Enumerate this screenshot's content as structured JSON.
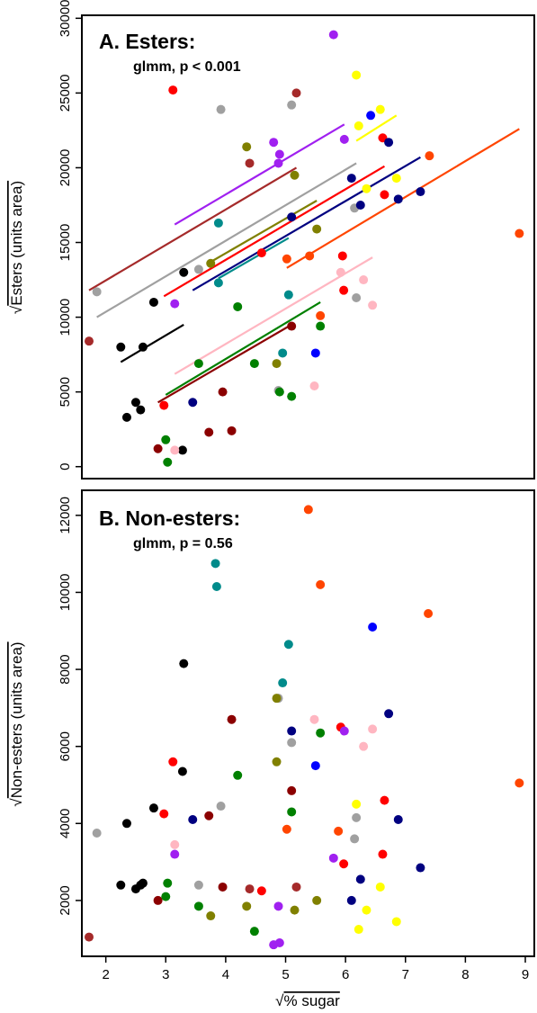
{
  "x_axis": {
    "label_sqrt_symbol": "√",
    "label": "% sugar",
    "ticks": [
      2,
      3,
      4,
      5,
      6,
      7,
      8,
      9
    ],
    "tick_labels": [
      "2",
      "3",
      "4",
      "5",
      "6",
      "7",
      "8",
      "9"
    ],
    "xlim": [
      1.6,
      9.15
    ]
  },
  "chart_data": [
    {
      "type": "scatter",
      "title": "A. Esters:",
      "subtitle": "glmm, p < 0.001",
      "ylabel_sqrt_symbol": "√",
      "ylabel": "Esters (units area)",
      "ylim": [
        -800,
        30200
      ],
      "y_ticks": [
        0,
        5000,
        10000,
        15000,
        20000,
        25000,
        30000
      ],
      "y_tick_labels": [
        "0",
        "5000",
        "10000",
        "15000",
        "20000",
        "25000",
        "30000"
      ],
      "grid": false,
      "legend": "none",
      "points": [
        {
          "x": 2.25,
          "y": 8000,
          "color": "#000000"
        },
        {
          "x": 2.62,
          "y": 8000,
          "color": "#000000"
        },
        {
          "x": 2.8,
          "y": 11000,
          "color": "#000000"
        },
        {
          "x": 3.3,
          "y": 13000,
          "color": "#000000"
        },
        {
          "x": 2.35,
          "y": 3300,
          "color": "#000000"
        },
        {
          "x": 2.5,
          "y": 4300,
          "color": "#000000"
        },
        {
          "x": 2.58,
          "y": 3800,
          "color": "#000000"
        },
        {
          "x": 3.28,
          "y": 1100,
          "color": "#000000"
        },
        {
          "x": 1.85,
          "y": 11700,
          "color": "#a0a0a0"
        },
        {
          "x": 3.55,
          "y": 13200,
          "color": "#a0a0a0"
        },
        {
          "x": 3.92,
          "y": 23900,
          "color": "#a0a0a0"
        },
        {
          "x": 5.1,
          "y": 24200,
          "color": "#a0a0a0"
        },
        {
          "x": 6.15,
          "y": 17300,
          "color": "#a0a0a0"
        },
        {
          "x": 6.18,
          "y": 11300,
          "color": "#a0a0a0"
        },
        {
          "x": 4.88,
          "y": 5100,
          "color": "#a0a0a0"
        },
        {
          "x": 3.12,
          "y": 25200,
          "color": "#ff0000"
        },
        {
          "x": 2.97,
          "y": 4100,
          "color": "#ff0000"
        },
        {
          "x": 4.6,
          "y": 14300,
          "color": "#ff0000"
        },
        {
          "x": 5.95,
          "y": 14100,
          "color": "#ff0000"
        },
        {
          "x": 5.97,
          "y": 11800,
          "color": "#ff0000"
        },
        {
          "x": 6.62,
          "y": 22000,
          "color": "#ff0000"
        },
        {
          "x": 6.65,
          "y": 18200,
          "color": "#ff0000"
        },
        {
          "x": 5.8,
          "y": 28900,
          "color": "#a020f0"
        },
        {
          "x": 4.8,
          "y": 21700,
          "color": "#a020f0"
        },
        {
          "x": 4.88,
          "y": 20300,
          "color": "#a020f0"
        },
        {
          "x": 4.9,
          "y": 20900,
          "color": "#a020f0"
        },
        {
          "x": 5.98,
          "y": 21900,
          "color": "#a020f0"
        },
        {
          "x": 3.15,
          "y": 10900,
          "color": "#a020f0"
        },
        {
          "x": 6.18,
          "y": 26200,
          "color": "#ffff00"
        },
        {
          "x": 6.22,
          "y": 22800,
          "color": "#ffff00"
        },
        {
          "x": 6.58,
          "y": 23900,
          "color": "#ffff00"
        },
        {
          "x": 6.35,
          "y": 18600,
          "color": "#ffff00"
        },
        {
          "x": 6.85,
          "y": 19300,
          "color": "#ffff00"
        },
        {
          "x": 6.42,
          "y": 23500,
          "color": "#0000ff"
        },
        {
          "x": 5.5,
          "y": 7600,
          "color": "#0000ff"
        },
        {
          "x": 6.72,
          "y": 21700,
          "color": "#000080"
        },
        {
          "x": 6.1,
          "y": 19300,
          "color": "#000080"
        },
        {
          "x": 6.25,
          "y": 17500,
          "color": "#000080"
        },
        {
          "x": 6.88,
          "y": 17900,
          "color": "#000080"
        },
        {
          "x": 7.25,
          "y": 18400,
          "color": "#000080"
        },
        {
          "x": 5.1,
          "y": 16700,
          "color": "#000080"
        },
        {
          "x": 3.45,
          "y": 4300,
          "color": "#000080"
        },
        {
          "x": 7.4,
          "y": 20800,
          "color": "#ff4500"
        },
        {
          "x": 8.9,
          "y": 15600,
          "color": "#ff4500"
        },
        {
          "x": 5.4,
          "y": 14100,
          "color": "#ff4500"
        },
        {
          "x": 5.02,
          "y": 13900,
          "color": "#ff4500"
        },
        {
          "x": 5.58,
          "y": 10100,
          "color": "#ff4500"
        },
        {
          "x": 4.35,
          "y": 21400,
          "color": "#808000"
        },
        {
          "x": 3.75,
          "y": 13600,
          "color": "#808000"
        },
        {
          "x": 5.15,
          "y": 19500,
          "color": "#808000"
        },
        {
          "x": 5.52,
          "y": 15900,
          "color": "#808000"
        },
        {
          "x": 4.85,
          "y": 6900,
          "color": "#808000"
        },
        {
          "x": 3.88,
          "y": 16300,
          "color": "#008b8b"
        },
        {
          "x": 3.88,
          "y": 12300,
          "color": "#008b8b"
        },
        {
          "x": 5.05,
          "y": 11500,
          "color": "#008b8b"
        },
        {
          "x": 4.95,
          "y": 7600,
          "color": "#008b8b"
        },
        {
          "x": 4.2,
          "y": 10700,
          "color": "#008000"
        },
        {
          "x": 3.55,
          "y": 6900,
          "color": "#008000"
        },
        {
          "x": 4.48,
          "y": 6900,
          "color": "#008000"
        },
        {
          "x": 4.9,
          "y": 5000,
          "color": "#008000"
        },
        {
          "x": 5.1,
          "y": 4700,
          "color": "#008000"
        },
        {
          "x": 5.58,
          "y": 9400,
          "color": "#008000"
        },
        {
          "x": 3.0,
          "y": 1800,
          "color": "#008000"
        },
        {
          "x": 3.03,
          "y": 300,
          "color": "#008000"
        },
        {
          "x": 1.72,
          "y": 8400,
          "color": "#a52a2a"
        },
        {
          "x": 4.4,
          "y": 20300,
          "color": "#a52a2a"
        },
        {
          "x": 5.18,
          "y": 25000,
          "color": "#a52a2a"
        },
        {
          "x": 2.87,
          "y": 1200,
          "color": "#8b0000"
        },
        {
          "x": 3.95,
          "y": 5000,
          "color": "#8b0000"
        },
        {
          "x": 3.72,
          "y": 2300,
          "color": "#8b0000"
        },
        {
          "x": 4.1,
          "y": 2400,
          "color": "#8b0000"
        },
        {
          "x": 5.1,
          "y": 9400,
          "color": "#8b0000"
        },
        {
          "x": 3.15,
          "y": 1100,
          "color": "#ffb6c1"
        },
        {
          "x": 5.48,
          "y": 5400,
          "color": "#ffb6c1"
        },
        {
          "x": 5.92,
          "y": 13000,
          "color": "#ffb6c1"
        },
        {
          "x": 6.3,
          "y": 12500,
          "color": "#ffb6c1"
        },
        {
          "x": 6.45,
          "y": 10800,
          "color": "#ffb6c1"
        }
      ],
      "fit_lines": [
        {
          "x": [
            2.25,
            3.3
          ],
          "y": [
            7000,
            9500
          ],
          "color": "#000000"
        },
        {
          "x": [
            1.72,
            5.18
          ],
          "y": [
            11800,
            20000
          ],
          "color": "#a52a2a"
        },
        {
          "x": [
            1.85,
            6.18
          ],
          "y": [
            10000,
            20300
          ],
          "color": "#a0a0a0"
        },
        {
          "x": [
            3.15,
            5.98
          ],
          "y": [
            16200,
            22900
          ],
          "color": "#a020f0"
        },
        {
          "x": [
            3.75,
            5.52
          ],
          "y": [
            13700,
            17800
          ],
          "color": "#808000"
        },
        {
          "x": [
            3.88,
            5.05
          ],
          "y": [
            12600,
            15300
          ],
          "color": "#008b8b"
        },
        {
          "x": [
            2.97,
            6.65
          ],
          "y": [
            11400,
            20100
          ],
          "color": "#ff0000"
        },
        {
          "x": [
            3.45,
            7.25
          ],
          "y": [
            11800,
            20700
          ],
          "color": "#000080"
        },
        {
          "x": [
            5.02,
            8.9
          ],
          "y": [
            13300,
            22600
          ],
          "color": "#ff4500"
        },
        {
          "x": [
            6.18,
            6.85
          ],
          "y": [
            21800,
            23500
          ],
          "color": "#ffff00"
        },
        {
          "x": [
            3.15,
            6.45
          ],
          "y": [
            6200,
            14000
          ],
          "color": "#ffb6c1"
        },
        {
          "x": [
            3.0,
            5.58
          ],
          "y": [
            4800,
            11000
          ],
          "color": "#008000"
        },
        {
          "x": [
            2.87,
            5.1
          ],
          "y": [
            4300,
            9500
          ],
          "color": "#8b0000"
        }
      ]
    },
    {
      "type": "scatter",
      "title": "B. Non-esters:",
      "subtitle": "glmm, p = 0.56",
      "ylabel_sqrt_symbol": "√",
      "ylabel": "Non-esters (units area)",
      "ylim": [
        550,
        12650
      ],
      "y_ticks": [
        2000,
        4000,
        6000,
        8000,
        10000,
        12000
      ],
      "y_tick_labels": [
        "2000",
        "4000",
        "6000",
        "8000",
        "10000",
        "12000"
      ],
      "grid": false,
      "legend": "none",
      "points": [
        {
          "x": 5.38,
          "y": 12150,
          "color": "#ff4500"
        },
        {
          "x": 5.58,
          "y": 10200,
          "color": "#ff4500"
        },
        {
          "x": 7.38,
          "y": 9450,
          "color": "#ff4500"
        },
        {
          "x": 8.9,
          "y": 5050,
          "color": "#ff4500"
        },
        {
          "x": 5.02,
          "y": 3850,
          "color": "#ff4500"
        },
        {
          "x": 5.88,
          "y": 3800,
          "color": "#ff4500"
        },
        {
          "x": 3.83,
          "y": 10750,
          "color": "#008b8b"
        },
        {
          "x": 3.85,
          "y": 10150,
          "color": "#008b8b"
        },
        {
          "x": 5.05,
          "y": 8650,
          "color": "#008b8b"
        },
        {
          "x": 4.95,
          "y": 7650,
          "color": "#008b8b"
        },
        {
          "x": 6.45,
          "y": 9100,
          "color": "#0000ff"
        },
        {
          "x": 5.5,
          "y": 5500,
          "color": "#0000ff"
        },
        {
          "x": 3.3,
          "y": 8150,
          "color": "#000000"
        },
        {
          "x": 3.28,
          "y": 5350,
          "color": "#000000"
        },
        {
          "x": 2.8,
          "y": 4400,
          "color": "#000000"
        },
        {
          "x": 2.35,
          "y": 4000,
          "color": "#000000"
        },
        {
          "x": 2.25,
          "y": 2400,
          "color": "#000000"
        },
        {
          "x": 2.5,
          "y": 2300,
          "color": "#000000"
        },
        {
          "x": 2.58,
          "y": 2400,
          "color": "#000000"
        },
        {
          "x": 2.62,
          "y": 2450,
          "color": "#000000"
        },
        {
          "x": 4.88,
          "y": 7250,
          "color": "#a0a0a0"
        },
        {
          "x": 5.1,
          "y": 6100,
          "color": "#a0a0a0"
        },
        {
          "x": 3.92,
          "y": 4450,
          "color": "#a0a0a0"
        },
        {
          "x": 1.85,
          "y": 3750,
          "color": "#a0a0a0"
        },
        {
          "x": 3.55,
          "y": 2400,
          "color": "#a0a0a0"
        },
        {
          "x": 6.15,
          "y": 3600,
          "color": "#a0a0a0"
        },
        {
          "x": 6.18,
          "y": 4150,
          "color": "#a0a0a0"
        },
        {
          "x": 4.1,
          "y": 6700,
          "color": "#8b0000"
        },
        {
          "x": 5.1,
          "y": 4850,
          "color": "#8b0000"
        },
        {
          "x": 3.72,
          "y": 4200,
          "color": "#8b0000"
        },
        {
          "x": 3.95,
          "y": 2350,
          "color": "#8b0000"
        },
        {
          "x": 2.87,
          "y": 2000,
          "color": "#8b0000"
        },
        {
          "x": 4.85,
          "y": 7250,
          "color": "#808000"
        },
        {
          "x": 4.85,
          "y": 5600,
          "color": "#808000"
        },
        {
          "x": 4.35,
          "y": 1850,
          "color": "#808000"
        },
        {
          "x": 3.75,
          "y": 1600,
          "color": "#808000"
        },
        {
          "x": 5.15,
          "y": 1750,
          "color": "#808000"
        },
        {
          "x": 5.52,
          "y": 2000,
          "color": "#808000"
        },
        {
          "x": 5.48,
          "y": 6700,
          "color": "#ffb6c1"
        },
        {
          "x": 6.45,
          "y": 6450,
          "color": "#ffb6c1"
        },
        {
          "x": 6.3,
          "y": 6000,
          "color": "#ffb6c1"
        },
        {
          "x": 3.15,
          "y": 3450,
          "color": "#ffb6c1"
        },
        {
          "x": 5.92,
          "y": 6500,
          "color": "#ff0000"
        },
        {
          "x": 3.12,
          "y": 5600,
          "color": "#ff0000"
        },
        {
          "x": 2.97,
          "y": 4250,
          "color": "#ff0000"
        },
        {
          "x": 6.65,
          "y": 4600,
          "color": "#ff0000"
        },
        {
          "x": 6.62,
          "y": 3200,
          "color": "#ff0000"
        },
        {
          "x": 5.97,
          "y": 2950,
          "color": "#ff0000"
        },
        {
          "x": 4.6,
          "y": 2250,
          "color": "#ff0000"
        },
        {
          "x": 5.98,
          "y": 6400,
          "color": "#a020f0"
        },
        {
          "x": 3.15,
          "y": 3200,
          "color": "#a020f0"
        },
        {
          "x": 5.8,
          "y": 3100,
          "color": "#a020f0"
        },
        {
          "x": 4.88,
          "y": 1850,
          "color": "#a020f0"
        },
        {
          "x": 4.8,
          "y": 850,
          "color": "#a020f0"
        },
        {
          "x": 4.9,
          "y": 900,
          "color": "#a020f0"
        },
        {
          "x": 5.58,
          "y": 6350,
          "color": "#008000"
        },
        {
          "x": 5.1,
          "y": 4300,
          "color": "#008000"
        },
        {
          "x": 4.2,
          "y": 5250,
          "color": "#008000"
        },
        {
          "x": 3.0,
          "y": 2100,
          "color": "#008000"
        },
        {
          "x": 3.03,
          "y": 2450,
          "color": "#008000"
        },
        {
          "x": 3.55,
          "y": 1850,
          "color": "#008000"
        },
        {
          "x": 4.48,
          "y": 1200,
          "color": "#008000"
        },
        {
          "x": 5.1,
          "y": 6400,
          "color": "#000080"
        },
        {
          "x": 6.72,
          "y": 6850,
          "color": "#000080"
        },
        {
          "x": 6.88,
          "y": 4100,
          "color": "#000080"
        },
        {
          "x": 3.45,
          "y": 4100,
          "color": "#000080"
        },
        {
          "x": 7.25,
          "y": 2850,
          "color": "#000080"
        },
        {
          "x": 6.25,
          "y": 2550,
          "color": "#000080"
        },
        {
          "x": 6.1,
          "y": 2000,
          "color": "#000080"
        },
        {
          "x": 6.18,
          "y": 4500,
          "color": "#ffff00"
        },
        {
          "x": 6.58,
          "y": 2350,
          "color": "#ffff00"
        },
        {
          "x": 6.35,
          "y": 1750,
          "color": "#ffff00"
        },
        {
          "x": 6.22,
          "y": 1250,
          "color": "#ffff00"
        },
        {
          "x": 6.85,
          "y": 1450,
          "color": "#ffff00"
        },
        {
          "x": 4.4,
          "y": 2300,
          "color": "#a52a2a"
        },
        {
          "x": 5.18,
          "y": 2350,
          "color": "#a52a2a"
        },
        {
          "x": 1.72,
          "y": 1050,
          "color": "#a52a2a"
        }
      ],
      "fit_lines": []
    }
  ]
}
